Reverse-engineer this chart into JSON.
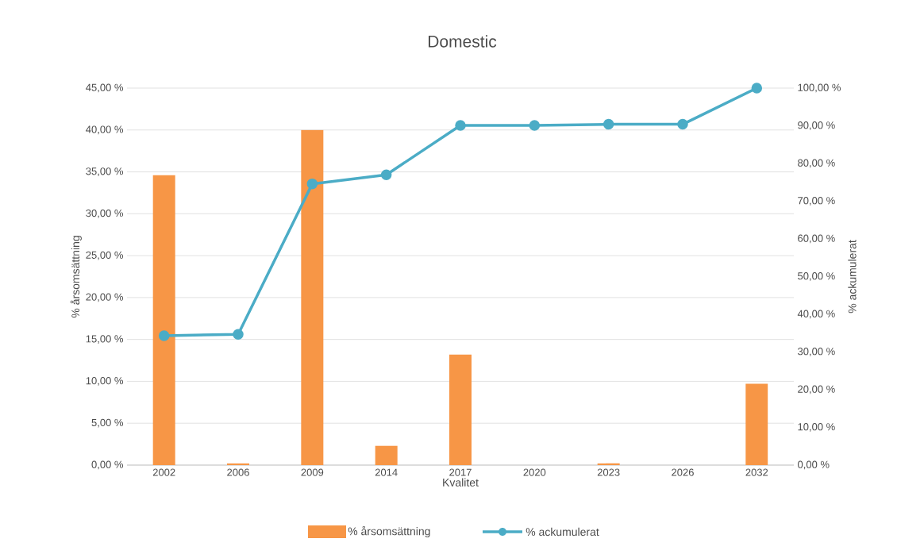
{
  "chart_data": {
    "type": "bar",
    "title": "Domestic",
    "xlabel": "Kvalitet",
    "ylabel": "% årsomsättning",
    "y2label": "% ackumulerat",
    "categories": [
      "2002",
      "2006",
      "2009",
      "2014",
      "2017",
      "2020",
      "2023",
      "2026",
      "2032"
    ],
    "series": [
      {
        "name": "% årsomsättning",
        "axis": "y",
        "color": "#f79646",
        "values": [
          34.6,
          0.2,
          40.0,
          2.3,
          13.2,
          0,
          0.2,
          0,
          9.7
        ]
      },
      {
        "name": "% ackumulerat",
        "type": "line",
        "axis": "y2",
        "color": "#4bacc6",
        "marker": "circle",
        "values": [
          34.3,
          34.7,
          74.6,
          77.0,
          90.1,
          90.1,
          90.4,
          90.4,
          100
        ]
      }
    ],
    "ylim": [
      0,
      45
    ],
    "yticks": [
      {
        "value": 0,
        "label": "0,00 %"
      },
      {
        "value": 5,
        "label": "5,00 %"
      },
      {
        "value": 10,
        "label": "10,00 %"
      },
      {
        "value": 15,
        "label": "15,00 %"
      },
      {
        "value": 20,
        "label": "20,00 %"
      },
      {
        "value": 25,
        "label": "25,00 %"
      },
      {
        "value": 30,
        "label": "30,00 %"
      },
      {
        "value": 35,
        "label": "35,00 %"
      },
      {
        "value": 40,
        "label": "40,00 %"
      },
      {
        "value": 45,
        "label": "45,00 %"
      }
    ],
    "y2lim": [
      0,
      100
    ],
    "y2ticks": [
      {
        "value": 0,
        "label": "0,00 %"
      },
      {
        "value": 10,
        "label": "10,00 %"
      },
      {
        "value": 20,
        "label": "20,00 %"
      },
      {
        "value": 30,
        "label": "30,00 %"
      },
      {
        "value": 40,
        "label": "40,00 %"
      },
      {
        "value": 50,
        "label": "50,00 %"
      },
      {
        "value": 60,
        "label": "60,00 %"
      },
      {
        "value": 70,
        "label": "70,00 %"
      },
      {
        "value": 80,
        "label": "80,00 %"
      },
      {
        "value": 90,
        "label": "90,00 %"
      },
      {
        "value": 100,
        "label": "100,00 %"
      }
    ],
    "grid": "y",
    "legend": "bottom"
  }
}
